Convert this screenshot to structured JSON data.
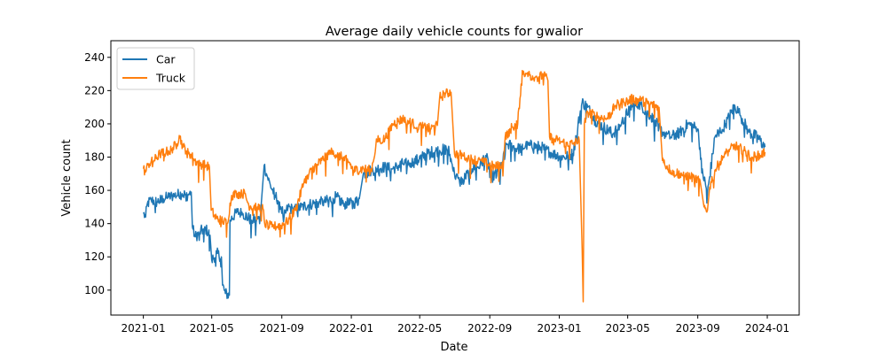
{
  "chart_data": {
    "type": "line",
    "title": "Average daily vehicle counts for gwalior",
    "xlabel": "Date",
    "ylabel": "Vehicle count",
    "xlim": [
      "2020-11-05",
      "2024-02-26"
    ],
    "ylim": [
      85,
      250
    ],
    "x_ticks": [
      "2021-01",
      "2021-05",
      "2021-09",
      "2022-01",
      "2022-05",
      "2022-09",
      "2023-01",
      "2023-05",
      "2023-09",
      "2024-01"
    ],
    "y_ticks": [
      100,
      120,
      140,
      160,
      180,
      200,
      220,
      240
    ],
    "legend_position": "top-left",
    "series": [
      {
        "name": "Car",
        "color": "#1f77b4",
        "points": [
          [
            "2021-01-01",
            146
          ],
          [
            "2021-01-05",
            144
          ],
          [
            "2021-01-08",
            152
          ],
          [
            "2021-01-15",
            154
          ],
          [
            "2021-01-25",
            153
          ],
          [
            "2021-02-05",
            155
          ],
          [
            "2021-02-15",
            156
          ],
          [
            "2021-02-25",
            157
          ],
          [
            "2021-03-10",
            158
          ],
          [
            "2021-03-20",
            157
          ],
          [
            "2021-03-26",
            159
          ],
          [
            "2021-03-28",
            138
          ],
          [
            "2021-04-02",
            132
          ],
          [
            "2021-04-10",
            135
          ],
          [
            "2021-04-20",
            137
          ],
          [
            "2021-04-28",
            133
          ],
          [
            "2021-05-01",
            118
          ],
          [
            "2021-05-10",
            122
          ],
          [
            "2021-05-18",
            120
          ],
          [
            "2021-05-20",
            103
          ],
          [
            "2021-05-25",
            98
          ],
          [
            "2021-06-01",
            97
          ],
          [
            "2021-06-02",
            142
          ],
          [
            "2021-06-15",
            147
          ],
          [
            "2021-06-25",
            146
          ],
          [
            "2021-07-10",
            142
          ],
          [
            "2021-07-25",
            143
          ],
          [
            "2021-08-01",
            175
          ],
          [
            "2021-08-05",
            170
          ],
          [
            "2021-08-12",
            163
          ],
          [
            "2021-08-20",
            157
          ],
          [
            "2021-08-28",
            153
          ],
          [
            "2021-09-05",
            144
          ],
          [
            "2021-09-12",
            150
          ],
          [
            "2021-09-22",
            148
          ],
          [
            "2021-10-05",
            150
          ],
          [
            "2021-10-25",
            152
          ],
          [
            "2021-11-15",
            153
          ],
          [
            "2021-12-05",
            156
          ],
          [
            "2021-12-20",
            152
          ],
          [
            "2022-01-05",
            152
          ],
          [
            "2022-01-15",
            155
          ],
          [
            "2022-01-22",
            170
          ],
          [
            "2022-02-05",
            172
          ],
          [
            "2022-02-25",
            174
          ],
          [
            "2022-03-15",
            173
          ],
          [
            "2022-04-01",
            176
          ],
          [
            "2022-04-20",
            177
          ],
          [
            "2022-05-05",
            180
          ],
          [
            "2022-05-20",
            183
          ],
          [
            "2022-06-05",
            184
          ],
          [
            "2022-06-20",
            185
          ],
          [
            "2022-07-01",
            170
          ],
          [
            "2022-07-10",
            165
          ],
          [
            "2022-07-20",
            168
          ],
          [
            "2022-08-01",
            173
          ],
          [
            "2022-08-15",
            175
          ],
          [
            "2022-08-25",
            181
          ],
          [
            "2022-09-05",
            168
          ],
          [
            "2022-09-20",
            172
          ],
          [
            "2022-10-01",
            188
          ],
          [
            "2022-10-20",
            185
          ],
          [
            "2022-11-10",
            187
          ],
          [
            "2022-11-30",
            186
          ],
          [
            "2022-12-20",
            182
          ],
          [
            "2023-01-10",
            180
          ],
          [
            "2023-01-25",
            182
          ],
          [
            "2023-02-10",
            213
          ],
          [
            "2023-02-20",
            210
          ],
          [
            "2023-03-05",
            202
          ],
          [
            "2023-03-20",
            198
          ],
          [
            "2023-04-05",
            194
          ],
          [
            "2023-04-20",
            200
          ],
          [
            "2023-05-05",
            210
          ],
          [
            "2023-05-20",
            212
          ],
          [
            "2023-06-10",
            205
          ],
          [
            "2023-06-25",
            198
          ],
          [
            "2023-07-01",
            195
          ],
          [
            "2023-07-15",
            192
          ],
          [
            "2023-08-01",
            195
          ],
          [
            "2023-08-15",
            200
          ],
          [
            "2023-09-01",
            197
          ],
          [
            "2023-09-10",
            170
          ],
          [
            "2023-09-18",
            158
          ],
          [
            "2023-10-01",
            192
          ],
          [
            "2023-10-20",
            200
          ],
          [
            "2023-11-05",
            211
          ],
          [
            "2023-11-15",
            205
          ],
          [
            "2023-11-30",
            195
          ],
          [
            "2023-12-15",
            192
          ],
          [
            "2023-12-28",
            186
          ]
        ]
      },
      {
        "name": "Truck",
        "color": "#ff7f0e",
        "points": [
          [
            "2021-01-01",
            173
          ],
          [
            "2021-01-05",
            171
          ],
          [
            "2021-01-10",
            176
          ],
          [
            "2021-01-20",
            178
          ],
          [
            "2021-01-30",
            182
          ],
          [
            "2021-02-10",
            183
          ],
          [
            "2021-02-20",
            185
          ],
          [
            "2021-03-01",
            188
          ],
          [
            "2021-03-05",
            193
          ],
          [
            "2021-03-12",
            186
          ],
          [
            "2021-03-22",
            183
          ],
          [
            "2021-04-01",
            178
          ],
          [
            "2021-04-10",
            176
          ],
          [
            "2021-04-20",
            175
          ],
          [
            "2021-04-27",
            174
          ],
          [
            "2021-04-30",
            148
          ],
          [
            "2021-05-10",
            143
          ],
          [
            "2021-05-20",
            142
          ],
          [
            "2021-05-28",
            140
          ],
          [
            "2021-06-05",
            157
          ],
          [
            "2021-06-15",
            158
          ],
          [
            "2021-06-28",
            158
          ],
          [
            "2021-07-05",
            151
          ],
          [
            "2021-07-20",
            150
          ],
          [
            "2021-07-30",
            149
          ],
          [
            "2021-08-02",
            140
          ],
          [
            "2021-08-15",
            138
          ],
          [
            "2021-08-30",
            139
          ],
          [
            "2021-09-10",
            141
          ],
          [
            "2021-09-25",
            148
          ],
          [
            "2021-10-10",
            165
          ],
          [
            "2021-10-25",
            173
          ],
          [
            "2021-11-10",
            178
          ],
          [
            "2021-11-25",
            183
          ],
          [
            "2021-12-10",
            181
          ],
          [
            "2021-12-28",
            177
          ],
          [
            "2022-01-05",
            172
          ],
          [
            "2022-01-20",
            173
          ],
          [
            "2022-02-05",
            172
          ],
          [
            "2022-02-15",
            190
          ],
          [
            "2022-03-01",
            191
          ],
          [
            "2022-03-15",
            200
          ],
          [
            "2022-04-01",
            203
          ],
          [
            "2022-04-20",
            200
          ],
          [
            "2022-05-05",
            198
          ],
          [
            "2022-05-20",
            197
          ],
          [
            "2022-06-01",
            199
          ],
          [
            "2022-06-05",
            216
          ],
          [
            "2022-06-15",
            218
          ],
          [
            "2022-06-25",
            219
          ],
          [
            "2022-07-01",
            182
          ],
          [
            "2022-07-15",
            181
          ],
          [
            "2022-08-01",
            179
          ],
          [
            "2022-08-20",
            177
          ],
          [
            "2022-09-10",
            174
          ],
          [
            "2022-09-25",
            176
          ],
          [
            "2022-09-28",
            192
          ],
          [
            "2022-10-10",
            198
          ],
          [
            "2022-10-20",
            200
          ],
          [
            "2022-10-28",
            232
          ],
          [
            "2022-11-05",
            230
          ],
          [
            "2022-11-20",
            228
          ],
          [
            "2022-12-05",
            229
          ],
          [
            "2022-12-12",
            226
          ],
          [
            "2022-12-15",
            192
          ],
          [
            "2023-01-05",
            189
          ],
          [
            "2023-01-25",
            188
          ],
          [
            "2023-02-05",
            190
          ],
          [
            "2023-02-10",
            125
          ],
          [
            "2023-02-12",
            93
          ],
          [
            "2023-02-14",
            200
          ],
          [
            "2023-02-20",
            207
          ],
          [
            "2023-03-05",
            205
          ],
          [
            "2023-03-25",
            203
          ],
          [
            "2023-04-10",
            211
          ],
          [
            "2023-04-25",
            213
          ],
          [
            "2023-05-10",
            215
          ],
          [
            "2023-05-25",
            214
          ],
          [
            "2023-06-10",
            212
          ],
          [
            "2023-06-25",
            210
          ],
          [
            "2023-07-01",
            178
          ],
          [
            "2023-07-15",
            172
          ],
          [
            "2023-08-01",
            170
          ],
          [
            "2023-08-20",
            168
          ],
          [
            "2023-09-05",
            166
          ],
          [
            "2023-09-12",
            150
          ],
          [
            "2023-09-18",
            148
          ],
          [
            "2023-09-22",
            162
          ],
          [
            "2023-10-01",
            172
          ],
          [
            "2023-10-20",
            182
          ],
          [
            "2023-11-05",
            187
          ],
          [
            "2023-11-20",
            184
          ],
          [
            "2023-12-05",
            180
          ],
          [
            "2023-12-20",
            181
          ],
          [
            "2023-12-28",
            183
          ]
        ]
      }
    ]
  }
}
